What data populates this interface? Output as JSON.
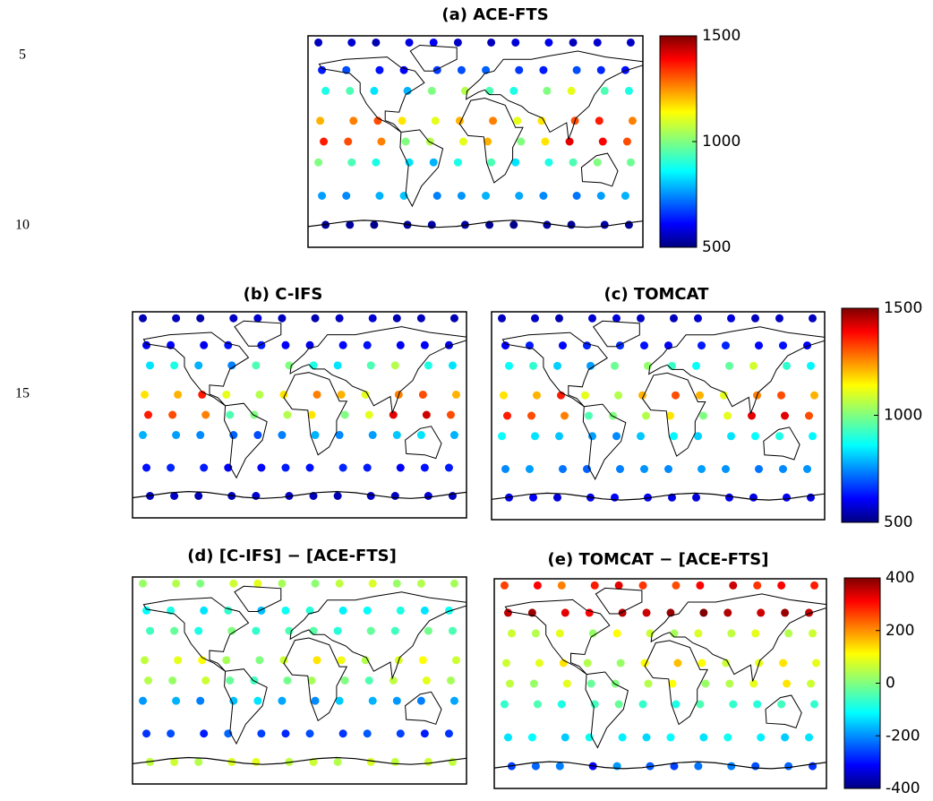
{
  "line_numbers": [
    "5",
    "10",
    "15"
  ],
  "lons": [
    -165,
    -135,
    -105,
    -75,
    -45,
    -15,
    15,
    45,
    75,
    105,
    135,
    165
  ],
  "lats": [
    82,
    62,
    42,
    20,
    0,
    -20,
    -45,
    -72
  ],
  "chart_data": [
    {
      "type": "scatter",
      "title": "(a) ACE-FTS",
      "clim": [
        500,
        1500
      ],
      "cticks": [
        500,
        1000,
        1500
      ],
      "values": [
        [
          560,
          580,
          550,
          600,
          620,
          570,
          560,
          590,
          610,
          560,
          580,
          570
        ],
        [
          650,
          700,
          640,
          620,
          680,
          700,
          720,
          680,
          650,
          700,
          660,
          640
        ],
        [
          900,
          950,
          850,
          800,
          1000,
          1050,
          950,
          900,
          1000,
          1100,
          950,
          900
        ],
        [
          1200,
          1250,
          1300,
          1150,
          1100,
          1200,
          1250,
          1100,
          1150,
          1300,
          1350,
          1250
        ],
        [
          1350,
          1300,
          1250,
          1000,
          1050,
          1100,
          1200,
          1000,
          1150,
          1400,
          1380,
          1300
        ],
        [
          1000,
          950,
          900,
          850,
          800,
          900,
          950,
          850,
          900,
          950,
          1000,
          980
        ],
        [
          780,
          760,
          800,
          820,
          750,
          770,
          800,
          790,
          760,
          740,
          780,
          800
        ],
        [
          520,
          530,
          510,
          520,
          540,
          530,
          520,
          510,
          530,
          520,
          540,
          520
        ]
      ]
    },
    {
      "type": "scatter",
      "title": "(b) C-IFS",
      "clim": [
        500,
        1500
      ],
      "values": [
        [
          550,
          560,
          540,
          570,
          580,
          560,
          550,
          570,
          580,
          550,
          560,
          550
        ],
        [
          600,
          620,
          610,
          640,
          650,
          620,
          600,
          630,
          640,
          610,
          620,
          600
        ],
        [
          850,
          900,
          800,
          750,
          950,
          1000,
          900,
          850,
          950,
          1050,
          900,
          850
        ],
        [
          1150,
          1200,
          1350,
          1100,
          1050,
          1150,
          1250,
          1200,
          1100,
          1250,
          1300,
          1200
        ],
        [
          1350,
          1300,
          1250,
          950,
          1000,
          1050,
          1150,
          1000,
          1100,
          1400,
          1420,
          1300
        ],
        [
          800,
          780,
          760,
          720,
          700,
          750,
          800,
          760,
          780,
          820,
          850,
          800
        ],
        [
          640,
          660,
          650,
          620,
          630,
          650,
          640,
          660,
          650,
          620,
          640,
          650
        ],
        [
          560,
          570,
          550,
          560,
          580,
          570,
          560,
          550,
          570,
          560,
          580,
          560
        ]
      ]
    },
    {
      "type": "scatter",
      "title": "(c) TOMCAT",
      "clim": [
        500,
        1500
      ],
      "cticks": [
        500,
        1000,
        1500
      ],
      "values": [
        [
          560,
          570,
          550,
          580,
          590,
          570,
          560,
          580,
          590,
          560,
          570,
          560
        ],
        [
          620,
          650,
          630,
          660,
          670,
          640,
          620,
          650,
          660,
          630,
          640,
          620
        ],
        [
          880,
          920,
          830,
          780,
          980,
          1020,
          930,
          880,
          970,
          1080,
          920,
          870
        ],
        [
          1150,
          1200,
          1350,
          1100,
          1050,
          1200,
          1300,
          1200,
          1100,
          1250,
          1300,
          1200
        ],
        [
          1350,
          1300,
          1250,
          950,
          1000,
          1050,
          1150,
          1000,
          1100,
          1400,
          1400,
          1300
        ],
        [
          880,
          850,
          820,
          780,
          760,
          820,
          870,
          830,
          850,
          880,
          900,
          870
        ],
        [
          760,
          780,
          740,
          720,
          750,
          770,
          760,
          780,
          770,
          740,
          760,
          770
        ],
        [
          600,
          620,
          590,
          600,
          630,
          610,
          600,
          590,
          610,
          600,
          620,
          600
        ]
      ]
    },
    {
      "type": "scatter",
      "title": "(d) [C-IFS] − [ACE-FTS]",
      "clim": [
        -400,
        400
      ],
      "values": [
        [
          20,
          40,
          0,
          60,
          80,
          30,
          10,
          50,
          70,
          20,
          40,
          30
        ],
        [
          -100,
          -80,
          -120,
          -60,
          -150,
          -90,
          -70,
          -110,
          -100,
          -80,
          -120,
          -90
        ],
        [
          -50,
          -20,
          -80,
          0,
          -60,
          -40,
          -30,
          -70,
          -20,
          -50,
          -10,
          -40
        ],
        [
          50,
          80,
          100,
          30,
          0,
          60,
          120,
          90,
          40,
          70,
          100,
          60
        ],
        [
          40,
          20,
          60,
          -20,
          -50,
          -10,
          30,
          0,
          -40,
          50,
          80,
          30
        ],
        [
          -180,
          -160,
          -200,
          -150,
          -120,
          -170,
          -190,
          -140,
          -160,
          -180,
          -200,
          -170
        ],
        [
          -260,
          -240,
          -280,
          -220,
          -250,
          -270,
          -240,
          -260,
          -230,
          -250,
          -280,
          -260
        ],
        [
          50,
          60,
          40,
          70,
          80,
          50,
          60,
          40,
          70,
          50,
          60,
          50
        ]
      ]
    },
    {
      "type": "scatter",
      "title": "(e) TOMCAT − [ACE-FTS]",
      "clim": [
        -400,
        400
      ],
      "cticks": [
        -400,
        -200,
        0,
        200,
        400
      ],
      "values": [
        [
          250,
          300,
          200,
          280,
          320,
          260,
          240,
          300,
          340,
          260,
          300,
          280
        ],
        [
          350,
          380,
          320,
          300,
          360,
          340,
          380,
          400,
          360,
          340,
          380,
          350
        ],
        [
          60,
          40,
          80,
          20,
          100,
          60,
          30,
          70,
          50,
          80,
          40,
          60
        ],
        [
          60,
          80,
          120,
          40,
          20,
          100,
          150,
          100,
          60,
          80,
          120,
          80
        ],
        [
          50,
          20,
          80,
          -20,
          0,
          40,
          100,
          20,
          40,
          80,
          120,
          60
        ],
        [
          -60,
          -40,
          -80,
          -50,
          -20,
          -60,
          -80,
          -40,
          -60,
          -70,
          -50,
          -60
        ],
        [
          -120,
          -100,
          -140,
          -90,
          -110,
          -130,
          -100,
          -120,
          -90,
          -110,
          -140,
          -120
        ],
        [
          -250,
          -220,
          -200,
          -300,
          -180,
          -230,
          -250,
          -210,
          -200,
          -240,
          -220,
          -260
        ]
      ]
    }
  ]
}
